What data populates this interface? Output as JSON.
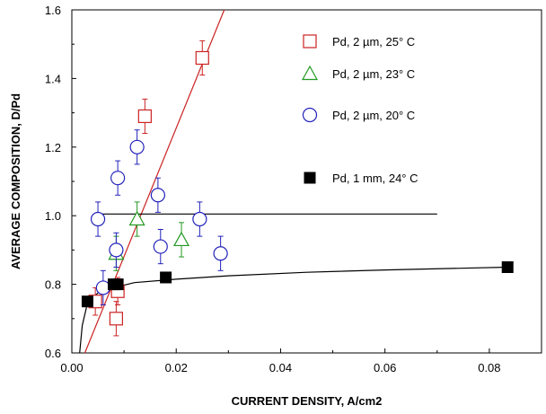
{
  "chart_data": {
    "type": "scatter",
    "xlabel": "CURRENT DENSITY, A/cm2",
    "ylabel": "AVERAGE COMPOSITION, D/Pd",
    "xlim": [
      0,
      0.09
    ],
    "ylim": [
      0.6,
      1.6
    ],
    "xticks": [
      "0.00",
      "0.02",
      "0.04",
      "0.06",
      "0.08"
    ],
    "yticks": [
      "0.6",
      "0.8",
      "1.0",
      "1.2",
      "1.4",
      "1.6"
    ],
    "grid": false,
    "legend_placement": "top-right",
    "series": [
      {
        "name": "Pd, 2 µm, 25° C",
        "marker": "open-square",
        "color": "#cc2222",
        "points": [
          {
            "x": 0.0045,
            "y": 0.75,
            "err": 0.04
          },
          {
            "x": 0.0085,
            "y": 0.7,
            "err": 0.05
          },
          {
            "x": 0.0088,
            "y": 0.78,
            "err": 0.04
          },
          {
            "x": 0.014,
            "y": 1.29,
            "err": 0.05
          },
          {
            "x": 0.025,
            "y": 1.46,
            "err": 0.05
          }
        ]
      },
      {
        "name": "Pd, 2 µm, 23° C",
        "marker": "open-triangle",
        "color": "#229922",
        "points": [
          {
            "x": 0.0085,
            "y": 0.89,
            "err": 0.05
          },
          {
            "x": 0.0125,
            "y": 0.99,
            "err": 0.05
          },
          {
            "x": 0.021,
            "y": 0.93,
            "err": 0.05
          }
        ]
      },
      {
        "name": "Pd, 2 µm, 20° C",
        "marker": "open-circle",
        "color": "#2222bb",
        "points": [
          {
            "x": 0.005,
            "y": 0.99,
            "err": 0.05
          },
          {
            "x": 0.006,
            "y": 0.79,
            "err": 0.05
          },
          {
            "x": 0.0085,
            "y": 0.9,
            "err": 0.05
          },
          {
            "x": 0.0088,
            "y": 1.11,
            "err": 0.05
          },
          {
            "x": 0.0125,
            "y": 1.2,
            "err": 0.05
          },
          {
            "x": 0.0165,
            "y": 1.06,
            "err": 0.05
          },
          {
            "x": 0.017,
            "y": 0.91,
            "err": 0.05
          },
          {
            "x": 0.0245,
            "y": 0.99,
            "err": 0.05
          },
          {
            "x": 0.0285,
            "y": 0.89,
            "err": 0.05
          }
        ]
      },
      {
        "name": "Pd, 1 mm, 24° C",
        "marker": "filled-square",
        "color": "#000000",
        "points": [
          {
            "x": 0.003,
            "y": 0.75
          },
          {
            "x": 0.008,
            "y": 0.8
          },
          {
            "x": 0.0088,
            "y": 0.8
          },
          {
            "x": 0.018,
            "y": 0.82
          },
          {
            "x": 0.0835,
            "y": 0.85
          }
        ]
      }
    ],
    "lines": [
      {
        "kind": "linear-fit",
        "color": "#cc2222",
        "points": [
          [
            0.0025,
            0.6
          ],
          [
            0.0292,
            1.6
          ]
        ]
      },
      {
        "kind": "horizontal",
        "color": "#000000",
        "points": [
          [
            0.005,
            1.005
          ],
          [
            0.07,
            1.005
          ]
        ]
      },
      {
        "kind": "saturation-curve",
        "color": "#000000",
        "points": [
          [
            0.0015,
            0.6
          ],
          [
            0.002,
            0.68
          ],
          [
            0.003,
            0.745
          ],
          [
            0.005,
            0.775
          ],
          [
            0.008,
            0.79
          ],
          [
            0.012,
            0.805
          ],
          [
            0.02,
            0.815
          ],
          [
            0.03,
            0.825
          ],
          [
            0.045,
            0.835
          ],
          [
            0.06,
            0.842
          ],
          [
            0.0835,
            0.85
          ]
        ]
      }
    ]
  }
}
